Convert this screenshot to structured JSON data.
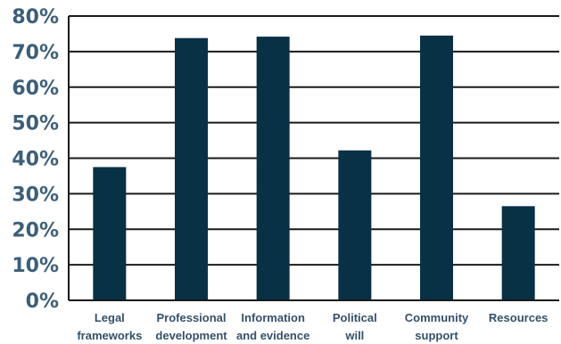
{
  "chart_data": {
    "type": "bar",
    "title": "",
    "xlabel": "",
    "ylabel": "",
    "ylim": [
      0,
      80
    ],
    "y_ticks": [
      "0%",
      "10%",
      "20%",
      "30%",
      "40%",
      "50%",
      "60%",
      "70%",
      "80%"
    ],
    "y_tick_values": [
      0,
      10,
      20,
      30,
      40,
      50,
      60,
      70,
      80
    ],
    "categories": [
      [
        "Legal",
        "frameworks"
      ],
      [
        "Professional",
        "development"
      ],
      [
        "Information",
        "and evidence"
      ],
      [
        "Political",
        "will"
      ],
      [
        "Community",
        "support"
      ],
      [
        "Resources"
      ]
    ],
    "values": [
      37.5,
      73.8,
      74.2,
      42.2,
      74.5,
      26.5
    ],
    "grid": true,
    "legend": "none",
    "colors": {
      "bar": "#083145",
      "grid": "#1a1a1a",
      "tick_text": "#3d5f78",
      "label_text": "#34506a"
    }
  }
}
